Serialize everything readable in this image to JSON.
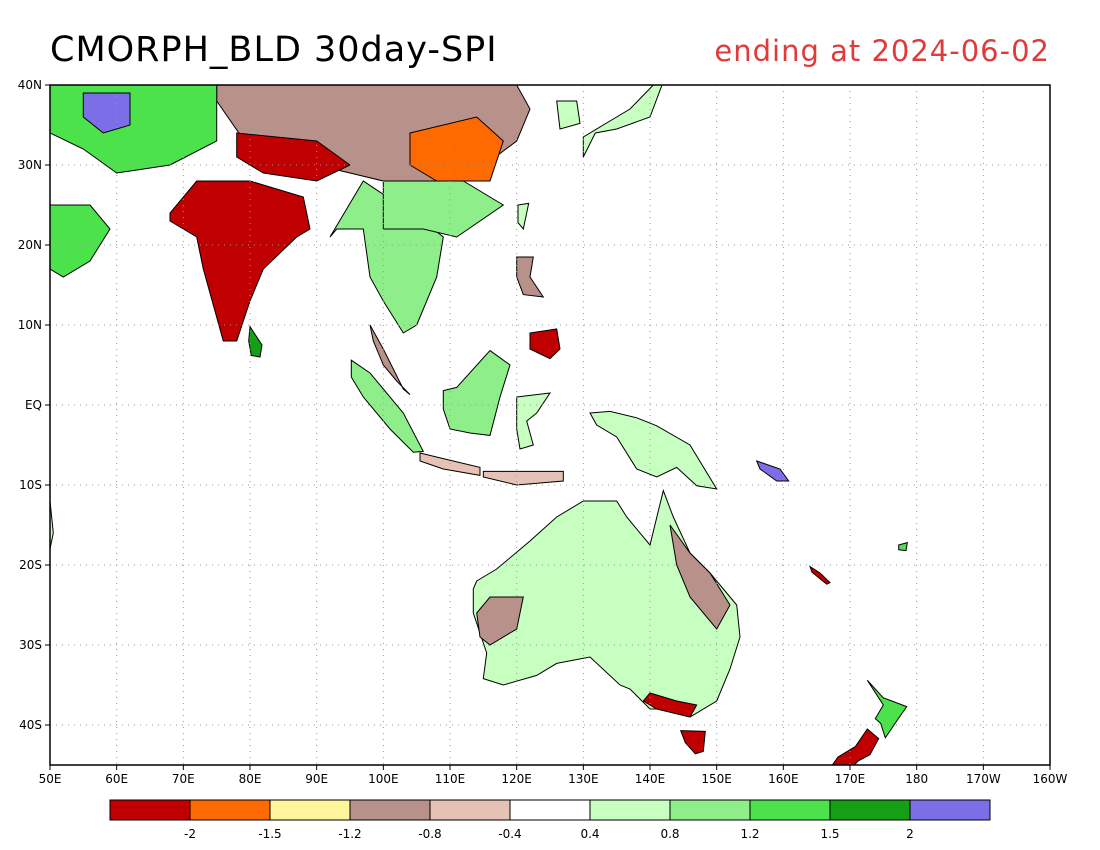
{
  "header": {
    "title": "CMORPH_BLD 30day-SPI",
    "subtitle": "ending at 2024-06-02",
    "subtitle_color": "#e03a3a"
  },
  "map": {
    "lon_range": [
      50,
      200
    ],
    "lat_range": [
      -45,
      40
    ],
    "lon_ticks": [
      {
        "lon": 50,
        "label": "50E"
      },
      {
        "lon": 60,
        "label": "60E"
      },
      {
        "lon": 70,
        "label": "70E"
      },
      {
        "lon": 80,
        "label": "80E"
      },
      {
        "lon": 90,
        "label": "90E"
      },
      {
        "lon": 100,
        "label": "100E"
      },
      {
        "lon": 110,
        "label": "110E"
      },
      {
        "lon": 120,
        "label": "120E"
      },
      {
        "lon": 130,
        "label": "130E"
      },
      {
        "lon": 140,
        "label": "140E"
      },
      {
        "lon": 150,
        "label": "150E"
      },
      {
        "lon": 160,
        "label": "160E"
      },
      {
        "lon": 170,
        "label": "170E"
      },
      {
        "lon": 180,
        "label": "180"
      },
      {
        "lon": 190,
        "label": "170W"
      },
      {
        "lon": 200,
        "label": "160W"
      }
    ],
    "lat_ticks": [
      {
        "lat": 40,
        "label": "40N"
      },
      {
        "lat": 30,
        "label": "30N"
      },
      {
        "lat": 20,
        "label": "20N"
      },
      {
        "lat": 10,
        "label": "10N"
      },
      {
        "lat": 0,
        "label": "EQ"
      },
      {
        "lat": -10,
        "label": "10S"
      },
      {
        "lat": -20,
        "label": "20S"
      },
      {
        "lat": -30,
        "label": "30S"
      },
      {
        "lat": -40,
        "label": "40S"
      }
    ],
    "land_color_scheme": "spi",
    "regions": [
      {
        "name": "india",
        "class": 0,
        "pts": [
          [
            68,
            23
          ],
          [
            72,
            21
          ],
          [
            73,
            17
          ],
          [
            76,
            8
          ],
          [
            78,
            8
          ],
          [
            80,
            13
          ],
          [
            82,
            17
          ],
          [
            87,
            21
          ],
          [
            89,
            22
          ],
          [
            88,
            26
          ],
          [
            80,
            28
          ],
          [
            72,
            28
          ],
          [
            68,
            24
          ]
        ]
      },
      {
        "name": "sri-lanka",
        "class": 9,
        "pts": [
          [
            80,
            9.8
          ],
          [
            81.8,
            7.5
          ],
          [
            81.5,
            6
          ],
          [
            80.2,
            6.2
          ],
          [
            79.8,
            8
          ]
        ]
      },
      {
        "name": "china-north",
        "class": 3,
        "pts": [
          [
            75,
            40
          ],
          [
            120,
            40
          ],
          [
            122,
            37
          ],
          [
            120,
            33
          ],
          [
            112,
            28
          ],
          [
            100,
            28
          ],
          [
            90,
            30
          ],
          [
            80,
            32
          ],
          [
            75,
            38
          ]
        ]
      },
      {
        "name": "tibet",
        "class": 0,
        "pts": [
          [
            78,
            34
          ],
          [
            90,
            33
          ],
          [
            95,
            30
          ],
          [
            90,
            28
          ],
          [
            82,
            29
          ],
          [
            78,
            31
          ]
        ]
      },
      {
        "name": "china-east",
        "class": 1,
        "pts": [
          [
            104,
            34
          ],
          [
            114,
            36
          ],
          [
            118,
            33
          ],
          [
            116,
            28
          ],
          [
            108,
            28
          ],
          [
            104,
            30
          ]
        ]
      },
      {
        "name": "central-asia",
        "class": 8,
        "pts": [
          [
            50,
            40
          ],
          [
            75,
            40
          ],
          [
            75,
            33
          ],
          [
            68,
            30
          ],
          [
            60,
            29
          ],
          [
            55,
            32
          ],
          [
            50,
            34
          ]
        ]
      },
      {
        "name": "iran-blue",
        "class": 10,
        "pts": [
          [
            55,
            39
          ],
          [
            62,
            39
          ],
          [
            62,
            35
          ],
          [
            58,
            34
          ],
          [
            55,
            36
          ]
        ]
      },
      {
        "name": "arabia",
        "class": 8,
        "pts": [
          [
            50,
            25
          ],
          [
            56,
            25
          ],
          [
            59,
            22
          ],
          [
            56,
            18
          ],
          [
            52,
            16
          ],
          [
            50,
            17
          ]
        ]
      },
      {
        "name": "indochina",
        "class": 7,
        "pts": [
          [
            92,
            21
          ],
          [
            97,
            28
          ],
          [
            106,
            23
          ],
          [
            109,
            21
          ],
          [
            108,
            16
          ],
          [
            105,
            10
          ],
          [
            103,
            9
          ],
          [
            100,
            13
          ],
          [
            98,
            16
          ],
          [
            97,
            22
          ],
          [
            93,
            22
          ]
        ]
      },
      {
        "name": "malay-peninsula",
        "class": 3,
        "pts": [
          [
            98,
            10
          ],
          [
            100,
            7
          ],
          [
            103,
            2
          ],
          [
            104,
            1.3
          ],
          [
            102,
            3
          ],
          [
            100,
            5
          ],
          [
            98.5,
            8
          ]
        ]
      },
      {
        "name": "south-china",
        "class": 7,
        "pts": [
          [
            100,
            28
          ],
          [
            112,
            28
          ],
          [
            118,
            25
          ],
          [
            111,
            21
          ],
          [
            106,
            22
          ],
          [
            100,
            22
          ]
        ]
      },
      {
        "name": "taiwan",
        "class": 6,
        "pts": [
          [
            120.2,
            25
          ],
          [
            121.8,
            25.2
          ],
          [
            121,
            22
          ],
          [
            120.2,
            22.8
          ]
        ]
      },
      {
        "name": "japan",
        "class": 6,
        "pts": [
          [
            130,
            31
          ],
          [
            131.8,
            34
          ],
          [
            135,
            34.5
          ],
          [
            140,
            36
          ],
          [
            141.8,
            40
          ],
          [
            140.5,
            40
          ],
          [
            137,
            37
          ],
          [
            133,
            35
          ],
          [
            130,
            33.5
          ]
        ]
      },
      {
        "name": "korea",
        "class": 6,
        "pts": [
          [
            126,
            38
          ],
          [
            129,
            38
          ],
          [
            129.5,
            35.2
          ],
          [
            126.5,
            34.5
          ]
        ]
      },
      {
        "name": "luzon",
        "class": 3,
        "pts": [
          [
            120,
            18.5
          ],
          [
            122.5,
            18.5
          ],
          [
            122,
            16
          ],
          [
            124,
            13.5
          ],
          [
            121,
            13.8
          ],
          [
            120,
            16
          ]
        ]
      },
      {
        "name": "mindanao",
        "class": 0,
        "pts": [
          [
            122,
            9
          ],
          [
            126,
            9.5
          ],
          [
            126.5,
            7
          ],
          [
            125,
            5.8
          ],
          [
            122,
            7
          ]
        ]
      },
      {
        "name": "sumatra",
        "class": 7,
        "pts": [
          [
            95.2,
            5.6
          ],
          [
            98,
            4
          ],
          [
            103,
            -1
          ],
          [
            106,
            -5.8
          ],
          [
            104.5,
            -5.9
          ],
          [
            101,
            -3
          ],
          [
            97,
            1
          ],
          [
            95.2,
            3.5
          ]
        ]
      },
      {
        "name": "java",
        "class": 4,
        "pts": [
          [
            105.5,
            -6
          ],
          [
            109,
            -6.7
          ],
          [
            114.5,
            -7.8
          ],
          [
            114.5,
            -8.8
          ],
          [
            109,
            -8
          ],
          [
            105.5,
            -7
          ]
        ]
      },
      {
        "name": "borneo",
        "class": 7,
        "pts": [
          [
            109,
            1.8
          ],
          [
            111,
            2.2
          ],
          [
            116,
            6.8
          ],
          [
            119,
            5
          ],
          [
            117.5,
            1
          ],
          [
            116,
            -3.8
          ],
          [
            113,
            -3.5
          ],
          [
            110,
            -3
          ],
          [
            109,
            -0.5
          ]
        ]
      },
      {
        "name": "sulawesi",
        "class": 6,
        "pts": [
          [
            120,
            1
          ],
          [
            125,
            1.5
          ],
          [
            123,
            -1
          ],
          [
            121.5,
            -2
          ],
          [
            122.5,
            -5
          ],
          [
            120.5,
            -5.5
          ],
          [
            120,
            -3
          ]
        ]
      },
      {
        "name": "new-guinea",
        "class": 6,
        "pts": [
          [
            131,
            -1
          ],
          [
            134,
            -0.8
          ],
          [
            138,
            -1.6
          ],
          [
            141,
            -2.6
          ],
          [
            146,
            -5
          ],
          [
            150,
            -10.5
          ],
          [
            147,
            -10.1
          ],
          [
            144,
            -7.8
          ],
          [
            141,
            -9
          ],
          [
            138,
            -8
          ],
          [
            135,
            -4
          ],
          [
            132,
            -2.5
          ]
        ]
      },
      {
        "name": "nusa-tenggara",
        "class": 4,
        "pts": [
          [
            115,
            -8.3
          ],
          [
            120,
            -8.3
          ],
          [
            127,
            -8.3
          ],
          [
            127,
            -9.5
          ],
          [
            120,
            -10
          ],
          [
            115,
            -9
          ]
        ]
      },
      {
        "name": "australia",
        "class": 6,
        "pts": [
          [
            114,
            -22
          ],
          [
            117,
            -20.5
          ],
          [
            122,
            -17
          ],
          [
            126,
            -14
          ],
          [
            130,
            -12
          ],
          [
            135,
            -12
          ],
          [
            136.5,
            -14
          ],
          [
            140,
            -17.5
          ],
          [
            142,
            -10.7
          ],
          [
            143.5,
            -14
          ],
          [
            146,
            -18.5
          ],
          [
            149,
            -21
          ],
          [
            153,
            -25
          ],
          [
            153.5,
            -29
          ],
          [
            152,
            -33
          ],
          [
            150,
            -37
          ],
          [
            146,
            -39
          ],
          [
            144,
            -38
          ],
          [
            140,
            -38
          ],
          [
            137,
            -35.5
          ],
          [
            135.5,
            -35
          ],
          [
            131,
            -31.5
          ],
          [
            126,
            -32.3
          ],
          [
            123,
            -33.8
          ],
          [
            118,
            -35
          ],
          [
            115,
            -34.2
          ],
          [
            115.5,
            -31
          ],
          [
            113.5,
            -26
          ],
          [
            113.5,
            -23
          ]
        ]
      },
      {
        "name": "aus-east-dry",
        "class": 3,
        "pts": [
          [
            143,
            -15
          ],
          [
            146,
            -18.5
          ],
          [
            149,
            -21
          ],
          [
            152,
            -25
          ],
          [
            150,
            -28
          ],
          [
            146,
            -24
          ],
          [
            144,
            -20
          ]
        ]
      },
      {
        "name": "aus-south-dry",
        "class": 0,
        "pts": [
          [
            139,
            -37
          ],
          [
            141,
            -38
          ],
          [
            146,
            -39
          ],
          [
            147,
            -37.5
          ],
          [
            144,
            -37
          ],
          [
            140,
            -36
          ]
        ]
      },
      {
        "name": "aus-sw-dry",
        "class": 3,
        "pts": [
          [
            114,
            -26
          ],
          [
            116,
            -24
          ],
          [
            121,
            -24
          ],
          [
            120,
            -28
          ],
          [
            116,
            -30
          ],
          [
            114.5,
            -29
          ]
        ]
      },
      {
        "name": "tasmania",
        "class": 0,
        "pts": [
          [
            144.6,
            -40.7
          ],
          [
            148.3,
            -40.8
          ],
          [
            148,
            -43.3
          ],
          [
            146.8,
            -43.6
          ],
          [
            145.3,
            -42.2
          ]
        ]
      },
      {
        "name": "nz-north",
        "class": 8,
        "pts": [
          [
            172.6,
            -34.4
          ],
          [
            175,
            -36.6
          ],
          [
            178.5,
            -37.7
          ],
          [
            177,
            -39.5
          ],
          [
            175.3,
            -41.6
          ],
          [
            174.6,
            -39.8
          ],
          [
            173.8,
            -39.2
          ],
          [
            175,
            -37.5
          ]
        ]
      },
      {
        "name": "nz-south",
        "class": 0,
        "pts": [
          [
            172.6,
            -40.5
          ],
          [
            174.3,
            -41.7
          ],
          [
            173,
            -43.7
          ],
          [
            171.2,
            -44.5
          ],
          [
            169,
            -46.6
          ],
          [
            166.5,
            -46
          ],
          [
            168.2,
            -44
          ],
          [
            170.8,
            -42.7
          ]
        ]
      },
      {
        "name": "new-caledonia",
        "class": 0,
        "pts": [
          [
            164,
            -20.2
          ],
          [
            165.5,
            -21
          ],
          [
            167,
            -22.2
          ],
          [
            166.5,
            -22.4
          ],
          [
            164.3,
            -20.9
          ]
        ]
      },
      {
        "name": "fiji",
        "class": 8,
        "pts": [
          [
            177.3,
            -17.5
          ],
          [
            178.6,
            -17.2
          ],
          [
            178.4,
            -18.2
          ],
          [
            177.3,
            -18.1
          ]
        ]
      },
      {
        "name": "solomon",
        "class": 10,
        "pts": [
          [
            156,
            -7
          ],
          [
            159.5,
            -8
          ],
          [
            160.8,
            -9.5
          ],
          [
            159,
            -9.5
          ],
          [
            156.5,
            -8
          ]
        ]
      },
      {
        "name": "madagascar-edge",
        "class": 6,
        "pts": [
          [
            50,
            -12
          ],
          [
            50.5,
            -16
          ],
          [
            50,
            -18
          ]
        ]
      }
    ]
  },
  "legend": {
    "colors": [
      "#c00000",
      "#ff6a00",
      "#fff59d",
      "#b8918a",
      "#e6c1b6",
      "#ffffff",
      "#c7ffc0",
      "#8eee8a",
      "#4ce24c",
      "#159f15",
      "#7b6ee6"
    ],
    "labels": [
      "-2",
      "-1.5",
      "-1.2",
      "-0.8",
      "-0.4",
      "0.4",
      "0.8",
      "1.2",
      "1.5",
      "2"
    ]
  }
}
